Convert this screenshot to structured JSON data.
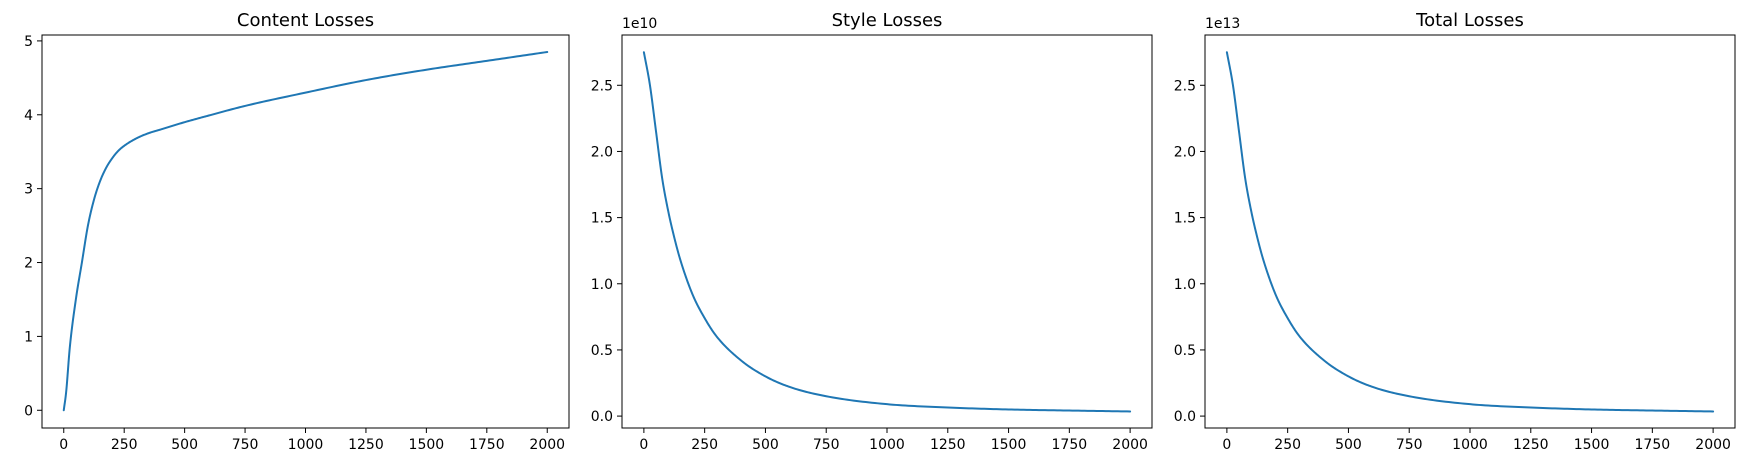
{
  "chart_data": [
    {
      "type": "line",
      "title": "Content Losses",
      "xlabel": "",
      "ylabel": "",
      "offset_label": "",
      "xlim": [
        -90,
        2090
      ],
      "ylim": [
        -0.24,
        5.08
      ],
      "xticks": [
        0,
        250,
        500,
        750,
        1000,
        1250,
        1500,
        1750,
        2000
      ],
      "xtick_labels": [
        "0",
        "250",
        "500",
        "750",
        "1000",
        "1250",
        "1500",
        "1750",
        "2000"
      ],
      "yticks": [
        0,
        1,
        2,
        3,
        4,
        5
      ],
      "ytick_labels": [
        "0",
        "1",
        "2",
        "3",
        "4",
        "5"
      ],
      "grid": false,
      "series": [
        {
          "color": "#1f77b4",
          "x": [
            0,
            10,
            25,
            50,
            75,
            100,
            125,
            150,
            175,
            200,
            225,
            250,
            300,
            350,
            400,
            500,
            600,
            750,
            1000,
            1250,
            1500,
            1750,
            2000
          ],
          "y": [
            0.0,
            0.25,
            0.85,
            1.5,
            2.0,
            2.5,
            2.85,
            3.1,
            3.28,
            3.41,
            3.51,
            3.58,
            3.68,
            3.75,
            3.8,
            3.9,
            3.99,
            4.12,
            4.3,
            4.47,
            4.61,
            4.73,
            4.85
          ]
        }
      ]
    },
    {
      "type": "line",
      "title": "Style Losses",
      "xlabel": "",
      "ylabel": "",
      "offset_label": "1e10",
      "xlim": [
        -90,
        2090
      ],
      "ylim": [
        -0.09,
        2.88
      ],
      "xticks": [
        0,
        250,
        500,
        750,
        1000,
        1250,
        1500,
        1750,
        2000
      ],
      "xtick_labels": [
        "0",
        "250",
        "500",
        "750",
        "1000",
        "1250",
        "1500",
        "1750",
        "2000"
      ],
      "yticks": [
        0.0,
        0.5,
        1.0,
        1.5,
        2.0,
        2.5
      ],
      "ytick_labels": [
        "0.0",
        "0.5",
        "1.0",
        "1.5",
        "2.0",
        "2.5"
      ],
      "grid": false,
      "series": [
        {
          "color": "#1f77b4",
          "x": [
            0,
            25,
            50,
            75,
            100,
            125,
            150,
            200,
            250,
            300,
            400,
            500,
            600,
            750,
            1000,
            1250,
            1500,
            1750,
            2000
          ],
          "y": [
            2.75,
            2.5,
            2.15,
            1.8,
            1.55,
            1.35,
            1.18,
            0.92,
            0.74,
            0.6,
            0.42,
            0.3,
            0.22,
            0.15,
            0.09,
            0.065,
            0.05,
            0.042,
            0.035
          ]
        }
      ]
    },
    {
      "type": "line",
      "title": "Total Losses",
      "xlabel": "",
      "ylabel": "",
      "offset_label": "1e13",
      "xlim": [
        -90,
        2090
      ],
      "ylim": [
        -0.09,
        2.88
      ],
      "xticks": [
        0,
        250,
        500,
        750,
        1000,
        1250,
        1500,
        1750,
        2000
      ],
      "xtick_labels": [
        "0",
        "250",
        "500",
        "750",
        "1000",
        "1250",
        "1500",
        "1750",
        "2000"
      ],
      "yticks": [
        0.0,
        0.5,
        1.0,
        1.5,
        2.0,
        2.5
      ],
      "ytick_labels": [
        "0.0",
        "0.5",
        "1.0",
        "1.5",
        "2.0",
        "2.5"
      ],
      "grid": false,
      "series": [
        {
          "color": "#1f77b4",
          "x": [
            0,
            25,
            50,
            75,
            100,
            125,
            150,
            200,
            250,
            300,
            400,
            500,
            600,
            750,
            1000,
            1250,
            1500,
            1750,
            2000
          ],
          "y": [
            2.75,
            2.5,
            2.15,
            1.8,
            1.55,
            1.35,
            1.18,
            0.92,
            0.74,
            0.6,
            0.42,
            0.3,
            0.22,
            0.15,
            0.09,
            0.065,
            0.05,
            0.042,
            0.035
          ]
        }
      ]
    }
  ]
}
